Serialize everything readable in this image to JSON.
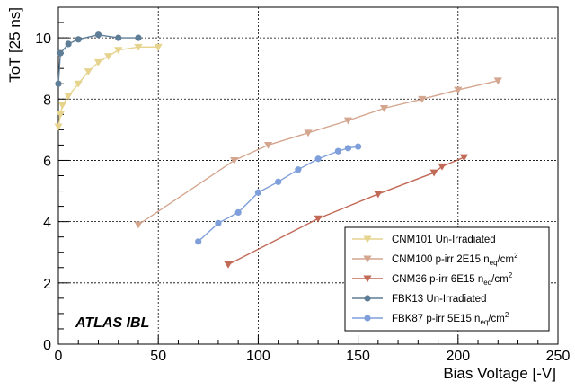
{
  "chart_data": {
    "type": "line",
    "title": "",
    "xlabel": "Bias Voltage [-V]",
    "ylabel": "ToT [25 ns]",
    "xlim": [
      0,
      250
    ],
    "ylim": [
      0,
      11
    ],
    "xticks": [
      0,
      50,
      100,
      150,
      200,
      250
    ],
    "yticks": [
      0,
      2,
      4,
      6,
      8,
      10
    ],
    "grid": true,
    "legend_position": "bottom-right",
    "annotation": "ATLAS IBL",
    "series": [
      {
        "name": "CNM101 Un-Irradiated",
        "label_main": "CNM101 Un-Irradiated",
        "label_sub": "",
        "label_tail": "",
        "label_sup": "",
        "color": "#e6d48e",
        "marker": "triangle-down",
        "x": [
          0,
          1,
          2,
          5,
          10,
          15,
          20,
          25,
          30,
          40,
          50
        ],
        "y": [
          7.1,
          7.5,
          7.8,
          8.1,
          8.5,
          8.9,
          9.2,
          9.4,
          9.6,
          9.7,
          9.7
        ]
      },
      {
        "name": "CNM100 p-irr 2E15 neq/cm2",
        "label_main": "CNM100 p-irr 2E15 n",
        "label_sub": "eq",
        "label_tail": "/cm",
        "label_sup": "2",
        "color": "#d4a68f",
        "marker": "triangle-down",
        "x": [
          40,
          88,
          105,
          125,
          145,
          163,
          182,
          200,
          220
        ],
        "y": [
          3.9,
          6.0,
          6.5,
          6.9,
          7.3,
          7.7,
          8.0,
          8.3,
          8.6
        ]
      },
      {
        "name": "CNM36 p-irr 6E15 neq/cm2",
        "label_main": "CNM36 p-irr 6E15 n",
        "label_sub": "eq",
        "label_tail": "/cm",
        "label_sup": "2",
        "color": "#c26a58",
        "marker": "triangle-down",
        "x": [
          85,
          130,
          160,
          188,
          192,
          203
        ],
        "y": [
          2.6,
          4.1,
          4.9,
          5.6,
          5.8,
          6.1
        ]
      },
      {
        "name": "FBK13 Un-Irradiated",
        "label_main": "FBK13 Un-Irradiated",
        "label_sub": "",
        "label_tail": "",
        "label_sup": "",
        "color": "#5e7d96",
        "marker": "circle",
        "x": [
          0,
          1,
          5,
          10,
          20,
          30,
          40
        ],
        "y": [
          8.5,
          9.5,
          9.8,
          9.95,
          10.1,
          10.0,
          10.0
        ]
      },
      {
        "name": "FBK87 p-irr 5E15 neq/cm2",
        "label_main": "FBK87 p-irr 5E15 n",
        "label_sub": "eq",
        "label_tail": "/cm",
        "label_sup": "2",
        "color": "#7f9fdb",
        "marker": "circle",
        "x": [
          70,
          80,
          90,
          100,
          110,
          120,
          130,
          140,
          145,
          150
        ],
        "y": [
          3.35,
          3.95,
          4.3,
          4.95,
          5.3,
          5.7,
          6.05,
          6.3,
          6.4,
          6.45
        ]
      }
    ]
  }
}
